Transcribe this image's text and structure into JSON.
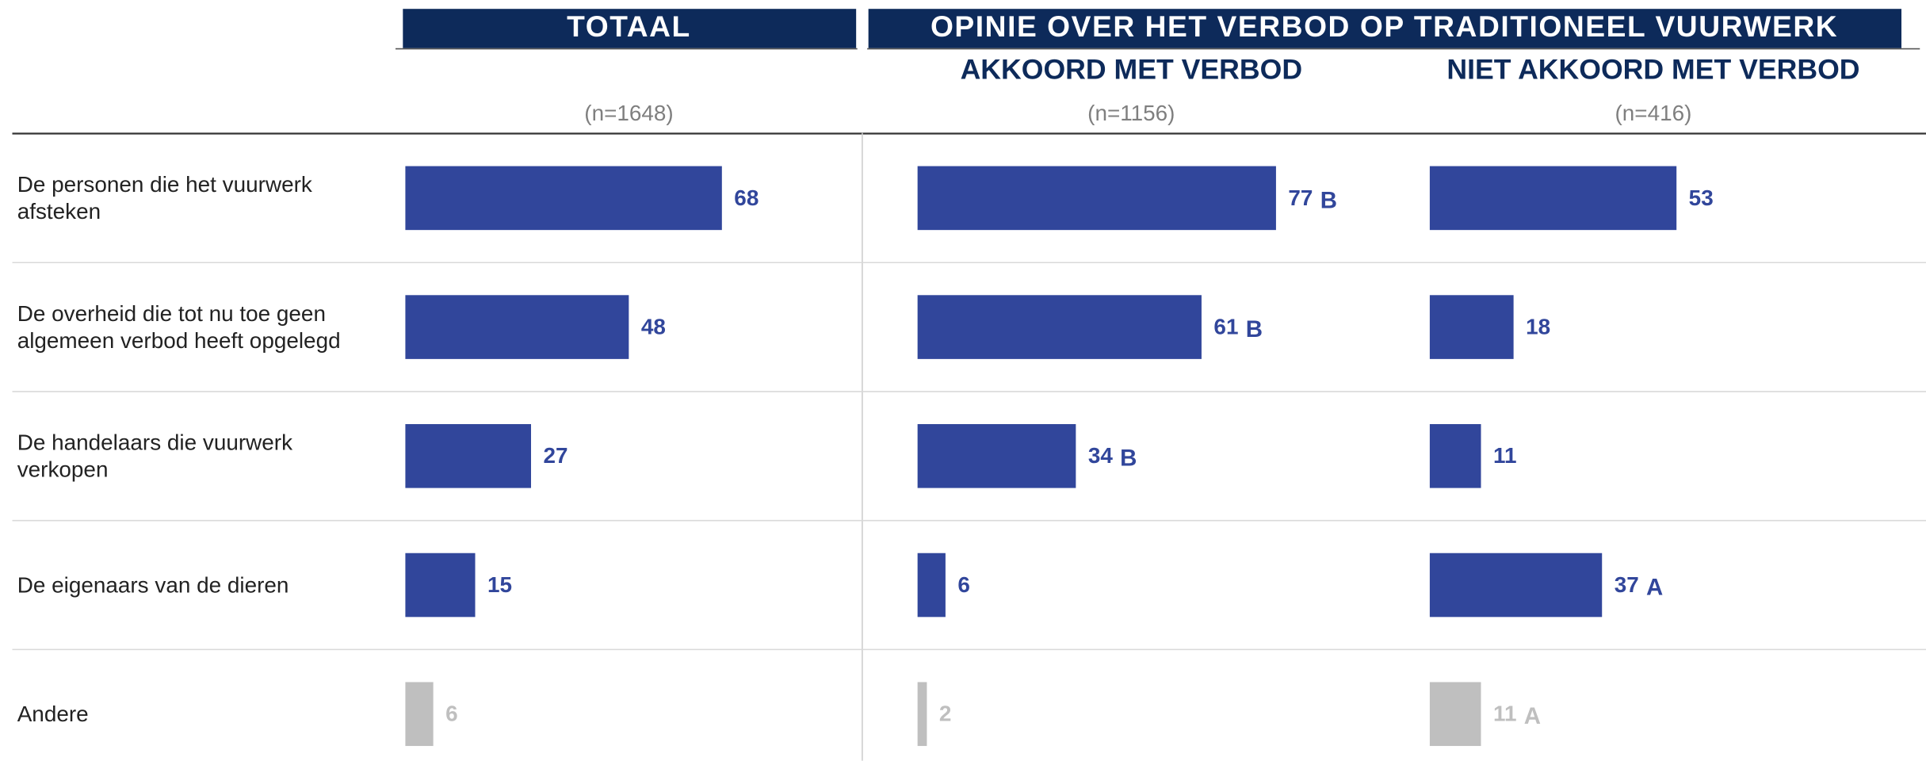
{
  "chart_data": {
    "type": "bar",
    "orientation": "horizontal",
    "group_title": "OPINIE OVER HET VERBOD OP TRADITIONEEL VUURWERK",
    "categories": [
      "De personen die het vuurwerk afsteken",
      "De overheid die tot nu toe geen algemeen verbod heeft opgelegd",
      "De handelaars die vuurwerk verkopen",
      "De eigenaars van de dieren",
      "Andere"
    ],
    "colors": [
      "#31469b",
      "#31469b",
      "#31469b",
      "#31469b",
      "#bfbfbf"
    ],
    "xlim": [
      0,
      100
    ],
    "series": [
      {
        "name": "TOTAAL",
        "subtitle": "(n=1648)",
        "values": [
          68,
          48,
          27,
          15,
          6
        ],
        "annotations": [
          null,
          null,
          null,
          null,
          null
        ]
      },
      {
        "name": "AKKOORD MET VERBOD",
        "subtitle": "(n=1156)",
        "values": [
          77,
          61,
          34,
          6,
          2
        ],
        "annotations": [
          "B",
          "B",
          "B",
          null,
          null
        ]
      },
      {
        "name": "NIET AKKOORD MET VERBOD",
        "subtitle": "(n=416)",
        "values": [
          53,
          18,
          11,
          37,
          11
        ],
        "annotations": [
          null,
          null,
          null,
          "A",
          "A"
        ]
      }
    ]
  }
}
